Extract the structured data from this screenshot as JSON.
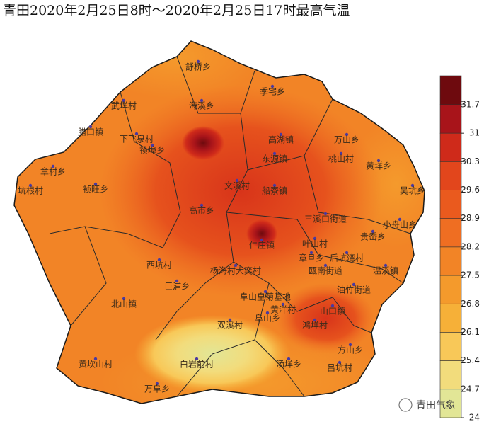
{
  "header": {
    "title": "青田2020年2月25日8时～2020年2月25日17时最高气温"
  },
  "places": [
    "舒桥乡",
    "季宅乡",
    "海溪乡",
    "武垟村",
    "腊口镇",
    "下飞泉村",
    "祯埠乡",
    "高湖镇",
    "万山乡",
    "东源镇",
    "桃山村",
    "黄垟乡",
    "章村乡",
    "祯旺乡",
    "坑根村",
    "文溪村",
    "船寮镇",
    "吴坑乡",
    "高市乡",
    "三溪口街道",
    "小舟山乡",
    "贵岙乡",
    "仁庄镇",
    "叶山村",
    "后坑湾村",
    "西坑村",
    "杨海村大奕村",
    "瓯南街道",
    "章旦乡",
    "温溪镇",
    "巨浦乡",
    "油竹街道",
    "阜山皇菊基地",
    "北山镇",
    "阜山乡",
    "黄洋村",
    "山口镇",
    "双溪村",
    "鸿垟村",
    "方山乡",
    "黄坎山村",
    "白岩前村",
    "汤垟乡",
    "吕坑村",
    "万阜乡"
  ],
  "legend": {
    "labels": [
      "31.7",
      "31",
      "30.3",
      "29.6",
      "28.9",
      "28.2",
      "27.5",
      "26.8",
      "26.1",
      "25.4",
      "24.7",
      "24"
    ],
    "colors": [
      "#6e0a0e",
      "#a8141a",
      "#cf2a1a",
      "#e2461c",
      "#ea5a1e",
      "#ef6e22",
      "#f28426",
      "#f49a2c",
      "#f6b038",
      "#f8c858",
      "#f2dc7c",
      "#e2e696"
    ]
  },
  "watermark": "青田气象"
}
